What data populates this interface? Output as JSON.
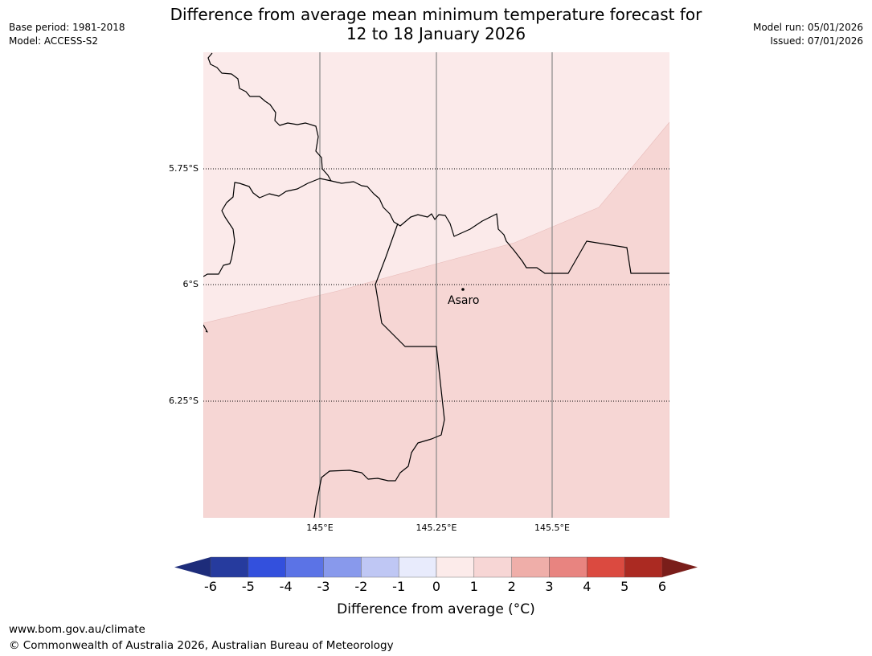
{
  "title": {
    "line1": "Difference from average mean minimum temperature forecast for",
    "line2": "12 to 18 January 2026"
  },
  "meta_left": [
    "Base period: 1981-2018",
    "Model: ACCESS-S2"
  ],
  "meta_right": [
    "Model run: 05/01/2026",
    "Issued: 07/01/2026"
  ],
  "map": {
    "lat_labels": [
      "5.75°S",
      "6°S",
      "6.25°S"
    ],
    "lon_labels": [
      "145°E",
      "145.25°E",
      "145.5°E"
    ],
    "place": {
      "name": "Asaro"
    },
    "regions": [
      {
        "category": "0 to 1",
        "color": "#fbeaea"
      },
      {
        "category": "1 to 2",
        "color": "#f6d6d4"
      }
    ]
  },
  "colorbar": {
    "label": "Difference from average (°C)",
    "ticks": [
      "-6",
      "-5",
      "-4",
      "-3",
      "-2",
      "-1",
      "0",
      "1",
      "2",
      "3",
      "4",
      "5",
      "6"
    ],
    "colors": [
      "#263b9e",
      "#3350dd",
      "#5b73e6",
      "#8899ec",
      "#bfc7f4",
      "#e8ebfc",
      "#fcebea",
      "#f7d6d5",
      "#efaea9",
      "#e88480",
      "#db4a40",
      "#ab2a22"
    ],
    "under_color": "#1d2c7a",
    "over_color": "#7a1e1a"
  },
  "footer": {
    "url": "www.bom.gov.au/climate",
    "copyright": "© Commonwealth of Australia 2026, Australian Bureau of Meteorology"
  }
}
